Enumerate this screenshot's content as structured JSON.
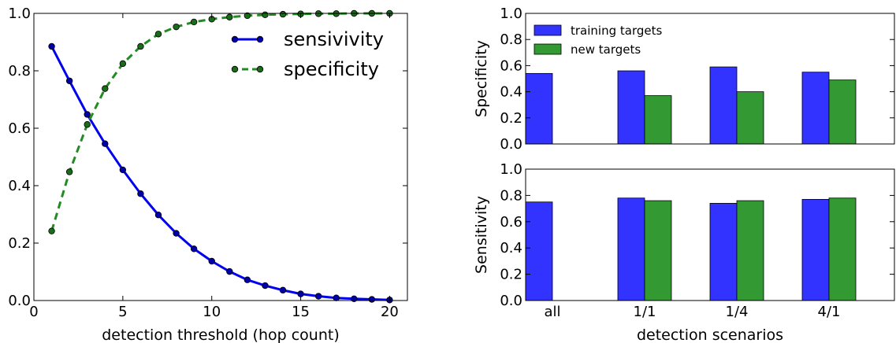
{
  "chart_data": [
    {
      "type": "line",
      "xlabel": "detection threshold (hop count)",
      "ylabel": "",
      "xlim": [
        0,
        21
      ],
      "ylim": [
        0.0,
        1.0
      ],
      "xticks": [
        "0",
        "5",
        "10",
        "15",
        "20"
      ],
      "yticks": [
        "0.0",
        "0.2",
        "0.4",
        "0.6",
        "0.8",
        "1.0"
      ],
      "legend_position": "top-right",
      "x": [
        1,
        2,
        3,
        4,
        5,
        6,
        7,
        8,
        9,
        10,
        11,
        12,
        13,
        14,
        15,
        16,
        17,
        18,
        19,
        20
      ],
      "series": [
        {
          "name": "sensivivity",
          "color": "#0000ee",
          "style": "solid",
          "values": [
            0.885,
            0.765,
            0.648,
            0.546,
            0.455,
            0.372,
            0.298,
            0.234,
            0.18,
            0.137,
            0.101,
            0.072,
            0.052,
            0.036,
            0.023,
            0.015,
            0.009,
            0.006,
            0.004,
            0.002
          ]
        },
        {
          "name": "specificity",
          "color": "#228b22",
          "style": "dashed",
          "values": [
            0.242,
            0.448,
            0.613,
            0.738,
            0.825,
            0.885,
            0.928,
            0.953,
            0.97,
            0.98,
            0.987,
            0.992,
            0.995,
            0.997,
            0.998,
            0.999,
            0.999,
            1.0,
            1.0,
            1.0
          ]
        }
      ]
    },
    {
      "type": "bar",
      "xlabel": "",
      "ylabel": "Specificity",
      "ylim": [
        0.0,
        1.0
      ],
      "yticks": [
        "0.0",
        "0.2",
        "0.4",
        "0.6",
        "0.8",
        "1.0"
      ],
      "legend_position": "top-left",
      "categories": [
        "all",
        "1/1",
        "1/4",
        "4/1"
      ],
      "series": [
        {
          "name": "training targets",
          "color": "#3333ff",
          "values": [
            0.54,
            0.56,
            0.59,
            0.55
          ]
        },
        {
          "name": "new targets",
          "color": "#339933",
          "values": [
            0.0,
            0.37,
            0.4,
            0.49
          ]
        }
      ]
    },
    {
      "type": "bar",
      "xlabel": "detection scenarios",
      "ylabel": "Sensitivity",
      "ylim": [
        0.0,
        1.0
      ],
      "yticks": [
        "0.0",
        "0.2",
        "0.4",
        "0.6",
        "0.8",
        "1.0"
      ],
      "categories": [
        "all",
        "1/1",
        "1/4",
        "4/1"
      ],
      "series": [
        {
          "name": "training targets",
          "color": "#3333ff",
          "values": [
            0.75,
            0.78,
            0.74,
            0.77
          ]
        },
        {
          "name": "new targets",
          "color": "#339933",
          "values": [
            0.0,
            0.76,
            0.76,
            0.78
          ]
        }
      ]
    }
  ]
}
